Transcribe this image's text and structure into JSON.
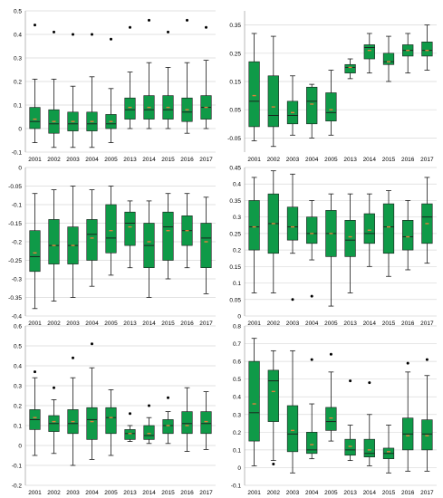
{
  "colors": {
    "box_fill": "#0f9a48",
    "box_edge": "#1a1a1a",
    "median": "#1a1a1a",
    "mean": "#e0803a",
    "outlier": "#000000",
    "grid": "#d9d9d9",
    "axis": "#9a9a9a"
  },
  "chart_data": [
    {
      "type": "box",
      "categories": [
        "2001",
        "2002",
        "2003",
        "2004",
        "2005",
        "2013",
        "2014",
        "2015",
        "2016",
        "2017"
      ],
      "ylim": [
        -0.1,
        0.5
      ],
      "yticks": [
        -0.1,
        0,
        0.1,
        0.2,
        0.3,
        0.4,
        0.5
      ],
      "ytick_labels": [
        "-0.1",
        "0",
        "0.1",
        "0.2",
        "0.3",
        "0.4",
        "0.5"
      ],
      "grid": true,
      "boxes": [
        {
          "whislo": -0.06,
          "q1": 0.0,
          "med": 0.03,
          "mean": 0.04,
          "q3": 0.09,
          "whishi": 0.21,
          "fliers": [
            0.44
          ]
        },
        {
          "whislo": -0.08,
          "q1": -0.02,
          "med": 0.02,
          "mean": 0.03,
          "q3": 0.08,
          "whishi": 0.21,
          "fliers": [
            0.41
          ]
        },
        {
          "whislo": -0.08,
          "q1": -0.01,
          "med": 0.02,
          "mean": 0.03,
          "q3": 0.07,
          "whishi": 0.18,
          "fliers": [
            0.4
          ]
        },
        {
          "whislo": -0.08,
          "q1": -0.01,
          "med": 0.02,
          "mean": 0.03,
          "q3": 0.07,
          "whishi": 0.22,
          "fliers": [
            0.4
          ]
        },
        {
          "whislo": -0.06,
          "q1": 0.0,
          "med": 0.02,
          "mean": 0.03,
          "q3": 0.06,
          "whishi": 0.17,
          "fliers": [
            0.38
          ]
        },
        {
          "whislo": 0.0,
          "q1": 0.04,
          "med": 0.08,
          "mean": 0.09,
          "q3": 0.13,
          "whishi": 0.24,
          "fliers": [
            0.43
          ]
        },
        {
          "whislo": 0.0,
          "q1": 0.04,
          "med": 0.08,
          "mean": 0.09,
          "q3": 0.14,
          "whishi": 0.28,
          "fliers": [
            0.46
          ]
        },
        {
          "whislo": 0.0,
          "q1": 0.04,
          "med": 0.08,
          "mean": 0.09,
          "q3": 0.14,
          "whishi": 0.26,
          "fliers": [
            0.41
          ]
        },
        {
          "whislo": -0.02,
          "q1": 0.03,
          "med": 0.07,
          "mean": 0.08,
          "q3": 0.13,
          "whishi": 0.28,
          "fliers": [
            0.46
          ]
        },
        {
          "whislo": 0.0,
          "q1": 0.04,
          "med": 0.09,
          "mean": 0.09,
          "q3": 0.14,
          "whishi": 0.29,
          "fliers": [
            0.43
          ]
        }
      ]
    },
    {
      "type": "box",
      "categories": [
        "2001",
        "2002",
        "2003",
        "2004",
        "2005",
        "2013",
        "2014",
        "2015",
        "2016",
        "2017"
      ],
      "ylim": [
        -0.1,
        0.4
      ],
      "yticks": [
        -0.05,
        0.05,
        0.15,
        0.25,
        0.35
      ],
      "ytick_labels": [
        "-0.05",
        "0.05",
        "0.15",
        "0.25",
        "0.35"
      ],
      "grid": true,
      "boxes": [
        {
          "whislo": -0.06,
          "q1": -0.01,
          "med": 0.08,
          "mean": 0.1,
          "q3": 0.22,
          "whishi": 0.32,
          "fliers": []
        },
        {
          "whislo": -0.08,
          "q1": -0.01,
          "med": 0.03,
          "mean": 0.06,
          "q3": 0.17,
          "whishi": 0.31,
          "fliers": []
        },
        {
          "whislo": -0.04,
          "q1": 0.0,
          "med": 0.03,
          "mean": 0.04,
          "q3": 0.08,
          "whishi": 0.17,
          "fliers": []
        },
        {
          "whislo": -0.05,
          "q1": 0.0,
          "med": 0.08,
          "mean": 0.07,
          "q3": 0.13,
          "whishi": 0.14,
          "fliers": []
        },
        {
          "whislo": -0.04,
          "q1": 0.01,
          "med": 0.04,
          "mean": 0.05,
          "q3": 0.11,
          "whishi": 0.19,
          "fliers": []
        },
        {
          "whislo": 0.16,
          "q1": 0.18,
          "med": 0.2,
          "mean": 0.2,
          "q3": 0.21,
          "whishi": 0.23,
          "fliers": []
        },
        {
          "whislo": 0.18,
          "q1": 0.23,
          "med": 0.27,
          "mean": 0.26,
          "q3": 0.28,
          "whishi": 0.32,
          "fliers": []
        },
        {
          "whislo": 0.15,
          "q1": 0.21,
          "med": 0.22,
          "mean": 0.22,
          "q3": 0.25,
          "whishi": 0.31,
          "fliers": []
        },
        {
          "whislo": 0.18,
          "q1": 0.24,
          "med": 0.26,
          "mean": 0.26,
          "q3": 0.28,
          "whishi": 0.32,
          "fliers": []
        },
        {
          "whislo": 0.19,
          "q1": 0.24,
          "med": 0.26,
          "mean": 0.26,
          "q3": 0.29,
          "whishi": 0.35,
          "fliers": []
        }
      ]
    },
    {
      "type": "box",
      "categories": [
        "2001",
        "2002",
        "2003",
        "2004",
        "2005",
        "2013",
        "2014",
        "2015",
        "2016",
        "2017"
      ],
      "ylim": [
        -0.4,
        0.0
      ],
      "yticks": [
        -0.4,
        -0.35,
        -0.3,
        -0.25,
        -0.2,
        -0.15,
        -0.1,
        -0.05,
        0
      ],
      "ytick_labels": [
        "-0.4",
        "-0.35",
        "-0.3",
        "-0.25",
        "-0.2",
        "-0.15",
        "-0.1",
        "-0.05",
        "0"
      ],
      "grid": true,
      "boxes": [
        {
          "whislo": -0.38,
          "q1": -0.28,
          "med": -0.24,
          "mean": -0.23,
          "q3": -0.17,
          "whishi": -0.07,
          "fliers": []
        },
        {
          "whislo": -0.36,
          "q1": -0.26,
          "med": -0.21,
          "mean": -0.21,
          "q3": -0.14,
          "whishi": -0.06,
          "fliers": []
        },
        {
          "whislo": -0.35,
          "q1": -0.26,
          "med": -0.21,
          "mean": -0.21,
          "q3": -0.16,
          "whishi": -0.05,
          "fliers": []
        },
        {
          "whislo": -0.32,
          "q1": -0.25,
          "med": -0.18,
          "mean": -0.19,
          "q3": -0.14,
          "whishi": -0.06,
          "fliers": []
        },
        {
          "whislo": -0.29,
          "q1": -0.23,
          "med": -0.19,
          "mean": -0.17,
          "q3": -0.1,
          "whishi": -0.05,
          "fliers": []
        },
        {
          "whislo": -0.27,
          "q1": -0.21,
          "med": -0.15,
          "mean": -0.16,
          "q3": -0.12,
          "whishi": -0.09,
          "fliers": []
        },
        {
          "whislo": -0.35,
          "q1": -0.27,
          "med": -0.21,
          "mean": -0.2,
          "q3": -0.15,
          "whishi": -0.09,
          "fliers": []
        },
        {
          "whislo": -0.3,
          "q1": -0.25,
          "med": -0.16,
          "mean": -0.17,
          "q3": -0.12,
          "whishi": -0.07,
          "fliers": []
        },
        {
          "whislo": -0.27,
          "q1": -0.21,
          "med": -0.17,
          "mean": -0.17,
          "q3": -0.13,
          "whishi": -0.07,
          "fliers": []
        },
        {
          "whislo": -0.34,
          "q1": -0.27,
          "med": -0.19,
          "mean": -0.2,
          "q3": -0.15,
          "whishi": -0.08,
          "fliers": []
        }
      ]
    },
    {
      "type": "box",
      "categories": [
        "2001",
        "2002",
        "2003",
        "2004",
        "2005",
        "2013",
        "2014",
        "2015",
        "2016",
        "2017"
      ],
      "ylim": [
        0,
        0.45
      ],
      "yticks": [
        0,
        0.05,
        0.1,
        0.15,
        0.2,
        0.25,
        0.3,
        0.35,
        0.4,
        0.45
      ],
      "ytick_labels": [
        "0",
        "0.05",
        "0.1",
        "0.15",
        "0.2",
        "0.25",
        "0.3",
        "0.35",
        "0.4",
        "0.45"
      ],
      "grid": true,
      "boxes": [
        {
          "whislo": 0.07,
          "q1": 0.2,
          "med": 0.27,
          "mean": 0.27,
          "q3": 0.35,
          "whishi": 0.42,
          "fliers": []
        },
        {
          "whislo": 0.07,
          "q1": 0.19,
          "med": 0.28,
          "mean": 0.28,
          "q3": 0.37,
          "whishi": 0.44,
          "fliers": []
        },
        {
          "whislo": 0.19,
          "q1": 0.23,
          "med": 0.27,
          "mean": 0.27,
          "q3": 0.33,
          "whishi": 0.43,
          "fliers": [
            0.05
          ]
        },
        {
          "whislo": 0.17,
          "q1": 0.22,
          "med": 0.25,
          "mean": 0.25,
          "q3": 0.3,
          "whishi": 0.35,
          "fliers": [
            0.06
          ]
        },
        {
          "whislo": 0.03,
          "q1": 0.18,
          "med": 0.25,
          "mean": 0.25,
          "q3": 0.32,
          "whishi": 0.37,
          "fliers": []
        },
        {
          "whislo": 0.07,
          "q1": 0.18,
          "med": 0.23,
          "mean": 0.24,
          "q3": 0.29,
          "whishi": 0.37,
          "fliers": []
        },
        {
          "whislo": 0.15,
          "q1": 0.22,
          "med": 0.25,
          "mean": 0.26,
          "q3": 0.31,
          "whishi": 0.37,
          "fliers": []
        },
        {
          "whislo": 0.12,
          "q1": 0.19,
          "med": 0.27,
          "mean": 0.27,
          "q3": 0.34,
          "whishi": 0.38,
          "fliers": []
        },
        {
          "whislo": 0.14,
          "q1": 0.2,
          "med": 0.24,
          "mean": 0.24,
          "q3": 0.29,
          "whishi": 0.35,
          "fliers": []
        },
        {
          "whislo": 0.16,
          "q1": 0.22,
          "med": 0.3,
          "mean": 0.28,
          "q3": 0.34,
          "whishi": 0.42,
          "fliers": []
        }
      ]
    },
    {
      "type": "box",
      "categories": [
        "2001",
        "2002",
        "2003",
        "2004",
        "2005",
        "2013",
        "2014",
        "2015",
        "2016",
        "2017"
      ],
      "ylim": [
        -0.2,
        0.6
      ],
      "yticks": [
        -0.2,
        -0.1,
        0,
        0.1,
        0.2,
        0.3,
        0.4,
        0.5,
        0.6
      ],
      "ytick_labels": [
        "-0.2",
        "-0.1",
        "0",
        "0.1",
        "0.2",
        "0.3",
        "0.4",
        "0.5",
        "0.6"
      ],
      "grid": true,
      "boxes": [
        {
          "whislo": -0.05,
          "q1": 0.08,
          "med": 0.13,
          "mean": 0.14,
          "q3": 0.18,
          "whishi": 0.34,
          "fliers": [
            0.37
          ]
        },
        {
          "whislo": -0.04,
          "q1": 0.07,
          "med": 0.11,
          "mean": 0.12,
          "q3": 0.15,
          "whishi": 0.23,
          "fliers": [
            0.29
          ]
        },
        {
          "whislo": -0.1,
          "q1": 0.06,
          "med": 0.11,
          "mean": 0.12,
          "q3": 0.18,
          "whishi": 0.34,
          "fliers": [
            0.44
          ]
        },
        {
          "whislo": -0.07,
          "q1": 0.03,
          "med": 0.13,
          "mean": 0.12,
          "q3": 0.19,
          "whishi": 0.39,
          "fliers": [
            0.51
          ]
        },
        {
          "whislo": -0.05,
          "q1": 0.06,
          "med": 0.14,
          "mean": 0.14,
          "q3": 0.19,
          "whishi": 0.28,
          "fliers": []
        },
        {
          "whislo": 0.02,
          "q1": 0.03,
          "med": 0.06,
          "mean": 0.06,
          "q3": 0.08,
          "whishi": 0.1,
          "fliers": [
            0.16
          ]
        },
        {
          "whislo": 0.01,
          "q1": 0.03,
          "med": 0.05,
          "mean": 0.06,
          "q3": 0.1,
          "whishi": 0.14,
          "fliers": [
            0.2
          ]
        },
        {
          "whislo": 0.01,
          "q1": 0.06,
          "med": 0.1,
          "mean": 0.1,
          "q3": 0.13,
          "whishi": 0.17,
          "fliers": [
            0.24
          ]
        },
        {
          "whislo": -0.03,
          "q1": 0.06,
          "med": 0.11,
          "mean": 0.1,
          "q3": 0.17,
          "whishi": 0.29,
          "fliers": []
        },
        {
          "whislo": -0.02,
          "q1": 0.06,
          "med": 0.11,
          "mean": 0.12,
          "q3": 0.17,
          "whishi": 0.27,
          "fliers": []
        }
      ]
    },
    {
      "type": "box",
      "categories": [
        "2001",
        "2002",
        "2003",
        "2004",
        "2005",
        "2013",
        "2014",
        "2015",
        "2016",
        "2017"
      ],
      "ylim": [
        -0.1,
        0.8
      ],
      "yticks": [
        -0.1,
        0,
        0.1,
        0.2,
        0.3,
        0.4,
        0.5,
        0.6,
        0.7,
        0.8
      ],
      "ytick_labels": [
        "-0.1",
        "0",
        "0.1",
        "0.2",
        "0.3",
        "0.4",
        "0.5",
        "0.6",
        "0.7",
        "0.8"
      ],
      "grid": true,
      "boxes": [
        {
          "whislo": 0.01,
          "q1": 0.15,
          "med": 0.31,
          "mean": 0.36,
          "q3": 0.6,
          "whishi": 0.73,
          "fliers": []
        },
        {
          "whislo": 0.04,
          "q1": 0.26,
          "med": 0.49,
          "mean": 0.43,
          "q3": 0.55,
          "whishi": 0.66,
          "fliers": [
            0.02
          ]
        },
        {
          "whislo": -0.03,
          "q1": 0.09,
          "med": 0.19,
          "mean": 0.21,
          "q3": 0.35,
          "whishi": 0.66,
          "fliers": []
        },
        {
          "whislo": 0.05,
          "q1": 0.08,
          "med": 0.1,
          "mean": 0.13,
          "q3": 0.2,
          "whishi": 0.36,
          "fliers": [
            0.61
          ]
        },
        {
          "whislo": 0.15,
          "q1": 0.21,
          "med": 0.26,
          "mean": 0.28,
          "q3": 0.34,
          "whishi": 0.54,
          "fliers": [
            0.64
          ]
        },
        {
          "whislo": 0.04,
          "q1": 0.07,
          "med": 0.1,
          "mean": 0.12,
          "q3": 0.16,
          "whishi": 0.24,
          "fliers": [
            0.49
          ]
        },
        {
          "whislo": 0.01,
          "q1": 0.06,
          "med": 0.08,
          "mean": 0.1,
          "q3": 0.16,
          "whishi": 0.3,
          "fliers": [
            0.48
          ]
        },
        {
          "whislo": -0.03,
          "q1": 0.05,
          "med": 0.08,
          "mean": 0.09,
          "q3": 0.11,
          "whishi": 0.24,
          "fliers": []
        },
        {
          "whislo": -0.02,
          "q1": 0.1,
          "med": 0.19,
          "mean": 0.18,
          "q3": 0.28,
          "whishi": 0.54,
          "fliers": [
            0.59
          ]
        },
        {
          "whislo": -0.02,
          "q1": 0.1,
          "med": 0.19,
          "mean": 0.18,
          "q3": 0.27,
          "whishi": 0.52,
          "fliers": [
            0.61
          ]
        }
      ]
    }
  ]
}
